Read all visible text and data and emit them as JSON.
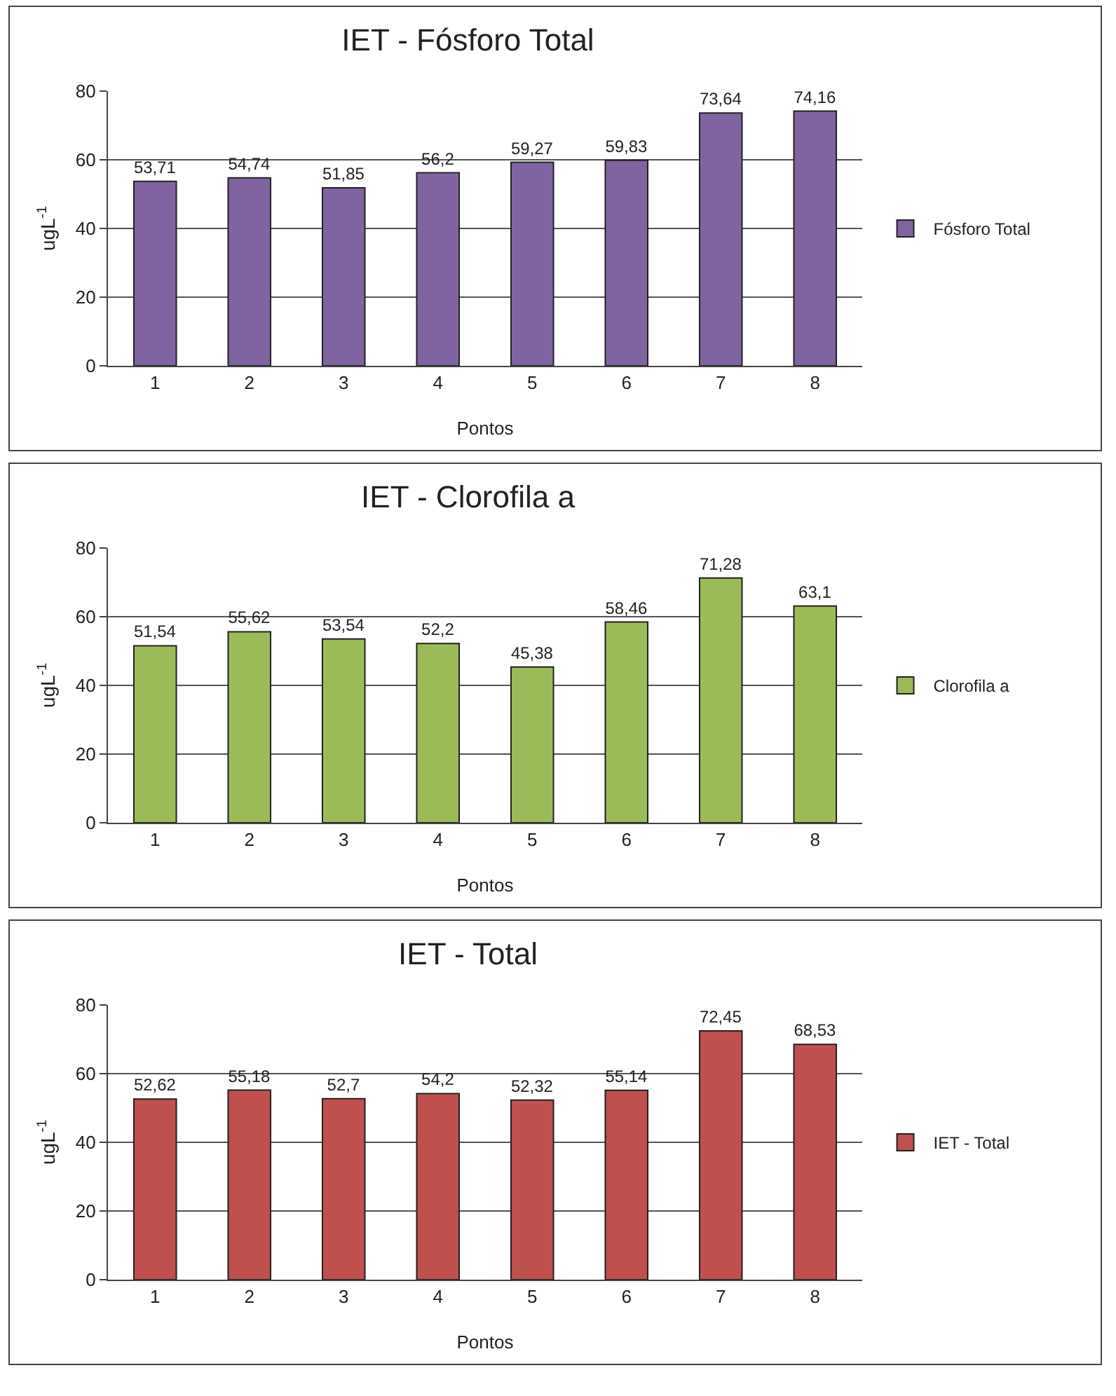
{
  "chart_data": [
    {
      "type": "bar",
      "title": "IET - Fósforo Total",
      "xlabel": "Pontos",
      "ylabel": "ugL$^{-1}$",
      "categories": [
        "1",
        "2",
        "3",
        "4",
        "5",
        "6",
        "7",
        "8"
      ],
      "series": [
        {
          "name": "Fósforo Total",
          "color": "#8064a2",
          "values": [
            53.71,
            54.74,
            51.85,
            56.2,
            59.27,
            59.83,
            73.64,
            74.16
          ],
          "value_labels": [
            "53,71",
            "54,74",
            "51,85",
            "56,2",
            "59,27",
            "59,83",
            "73,64",
            "74,16"
          ]
        }
      ],
      "ylim": [
        0,
        80
      ],
      "yticks": [
        0,
        20,
        40,
        60,
        80
      ],
      "grid": "y",
      "legend": "right"
    },
    {
      "type": "bar",
      "title": "IET - Clorofila a",
      "xlabel": "Pontos",
      "ylabel": "ugL$^{-1}$",
      "categories": [
        "1",
        "2",
        "3",
        "4",
        "5",
        "6",
        "7",
        "8"
      ],
      "series": [
        {
          "name": "Clorofila a",
          "color": "#9bbb59",
          "values": [
            51.54,
            55.62,
            53.54,
            52.2,
            45.38,
            58.46,
            71.28,
            63.1
          ],
          "value_labels": [
            "51,54",
            "55,62",
            "53,54",
            "52,2",
            "45,38",
            "58,46",
            "71,28",
            "63,1"
          ]
        }
      ],
      "ylim": [
        0,
        80
      ],
      "yticks": [
        0,
        20,
        40,
        60,
        80
      ],
      "grid": "y",
      "legend": "right"
    },
    {
      "type": "bar",
      "title": "IET - Total",
      "xlabel": "Pontos",
      "ylabel": "ugL$^{-1}$",
      "categories": [
        "1",
        "2",
        "3",
        "4",
        "5",
        "6",
        "7",
        "8"
      ],
      "series": [
        {
          "name": "IET - Total",
          "color": "#c0504d",
          "values": [
            52.62,
            55.18,
            52.7,
            54.2,
            52.32,
            55.14,
            72.45,
            68.53
          ],
          "value_labels": [
            "52,62",
            "55,18",
            "52,7",
            "54,2",
            "52,32",
            "55,14",
            "72,45",
            "68,53"
          ]
        }
      ],
      "ylim": [
        0,
        80
      ],
      "yticks": [
        0,
        20,
        40,
        60,
        80
      ],
      "grid": "y",
      "legend": "right"
    }
  ]
}
